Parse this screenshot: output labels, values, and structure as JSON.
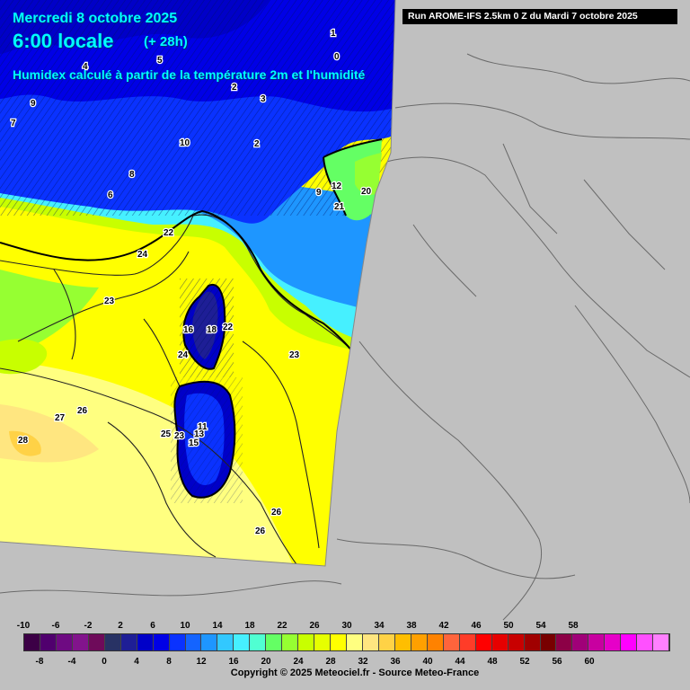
{
  "header": {
    "date": "Mercredi 8 octobre 2025",
    "time": "6:00 locale",
    "lead": "(+ 28h)",
    "description": "Humidex calculé à partir de la température 2m et l'humidité",
    "run": "Run AROME-IFS 2.5km 0 Z du Mardi 7 octobre 2025"
  },
  "legend": {
    "colors": [
      "#3c0046",
      "#50006e",
      "#6e0a82",
      "#82148c",
      "#6e0a5a",
      "#283264",
      "#1e1e96",
      "#0000c8",
      "#0000e6",
      "#0a32ff",
      "#1464ff",
      "#1e96ff",
      "#32c8ff",
      "#46f0ff",
      "#50ffd2",
      "#64ff64",
      "#96ff32",
      "#c8ff00",
      "#e6ff00",
      "#ffff00",
      "#ffff80",
      "#ffe680",
      "#ffd246",
      "#ffbe00",
      "#ffa000",
      "#ff8200",
      "#ff643c",
      "#ff3c28",
      "#ff0000",
      "#e60000",
      "#c80000",
      "#a00000",
      "#780000",
      "#8c0046",
      "#a00078",
      "#c800a0",
      "#e600c8",
      "#ff00ff",
      "#ff50ff",
      "#ff80ff"
    ],
    "ticks_top": [
      "-10",
      "-6",
      "-2",
      "2",
      "6",
      "10",
      "14",
      "18",
      "22",
      "26",
      "30",
      "34",
      "38",
      "42",
      "46",
      "50",
      "54",
      "58"
    ],
    "ticks_bottom": [
      "-8",
      "-4",
      "0",
      "4",
      "8",
      "12",
      "16",
      "20",
      "24",
      "28",
      "32",
      "36",
      "40",
      "44",
      "48",
      "52",
      "56",
      "60"
    ]
  },
  "map_labels": [
    "9",
    "7",
    "4",
    "5",
    "2",
    "1",
    "0",
    "3",
    "8",
    "10",
    "6",
    "2",
    "22",
    "24",
    "23",
    "18",
    "16",
    "22",
    "24",
    "23",
    "26",
    "27",
    "28",
    "25",
    "23",
    "11",
    "13",
    "15",
    "21",
    "20",
    "26",
    "26",
    "12",
    "9"
  ],
  "footer": "Copyright © 2025 Meteociel.fr - Source Meteo-France"
}
